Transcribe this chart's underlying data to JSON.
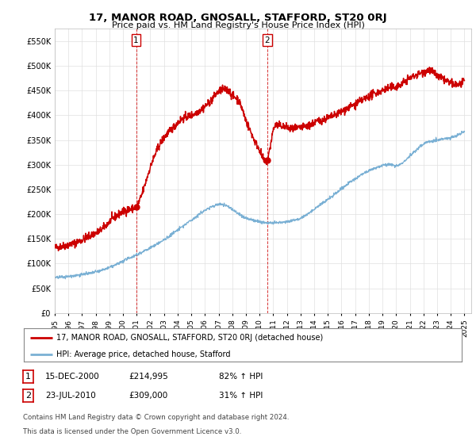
{
  "title": "17, MANOR ROAD, GNOSALL, STAFFORD, ST20 0RJ",
  "subtitle": "Price paid vs. HM Land Registry's House Price Index (HPI)",
  "ylabel_ticks": [
    "£0",
    "£50K",
    "£100K",
    "£150K",
    "£200K",
    "£250K",
    "£300K",
    "£350K",
    "£400K",
    "£450K",
    "£500K",
    "£550K"
  ],
  "ytick_values": [
    0,
    50000,
    100000,
    150000,
    200000,
    250000,
    300000,
    350000,
    400000,
    450000,
    500000,
    550000
  ],
  "ylim": [
    0,
    575000
  ],
  "xlim_start": 1995.0,
  "xlim_end": 2025.5,
  "transaction1": {
    "date_num": 2000.958,
    "price": 214995,
    "label": "1"
  },
  "transaction2": {
    "date_num": 2010.556,
    "price": 309000,
    "label": "2"
  },
  "legend_line1": "17, MANOR ROAD, GNOSALL, STAFFORD, ST20 0RJ (detached house)",
  "legend_line2": "HPI: Average price, detached house, Stafford",
  "footer": "Contains HM Land Registry data © Crown copyright and database right 2024.\nThis data is licensed under the Open Government Licence v3.0.",
  "color_red": "#cc0000",
  "color_blue": "#7ab0d4",
  "background_color": "#ffffff",
  "grid_color": "#e0e0e0",
  "red_anchors_x": [
    1995.0,
    1995.5,
    1996.0,
    1996.5,
    1997.0,
    1997.5,
    1998.0,
    1998.5,
    1999.0,
    1999.5,
    2000.0,
    2000.5,
    2000.958,
    2001.5,
    2002.0,
    2002.5,
    2003.0,
    2003.5,
    2004.0,
    2004.5,
    2005.0,
    2005.5,
    2006.0,
    2006.5,
    2007.0,
    2007.5,
    2007.8,
    2008.0,
    2008.3,
    2008.7,
    2009.0,
    2009.3,
    2009.7,
    2010.0,
    2010.556,
    2010.8,
    2011.0,
    2011.3,
    2011.7,
    2012.0,
    2012.5,
    2013.0,
    2013.5,
    2014.0,
    2014.5,
    2015.0,
    2015.5,
    2016.0,
    2016.5,
    2017.0,
    2017.5,
    2018.0,
    2018.5,
    2019.0,
    2019.5,
    2020.0,
    2020.5,
    2021.0,
    2021.5,
    2022.0,
    2022.5,
    2023.0,
    2023.5,
    2024.0,
    2024.5,
    2025.0
  ],
  "red_anchors_y": [
    132000,
    135000,
    138000,
    142000,
    148000,
    155000,
    162000,
    170000,
    185000,
    196000,
    205000,
    210000,
    214995,
    250000,
    295000,
    330000,
    355000,
    370000,
    385000,
    395000,
    400000,
    408000,
    418000,
    432000,
    448000,
    452000,
    448000,
    440000,
    435000,
    415000,
    390000,
    370000,
    345000,
    330000,
    309000,
    340000,
    370000,
    380000,
    378000,
    375000,
    372000,
    375000,
    378000,
    385000,
    390000,
    395000,
    400000,
    408000,
    415000,
    422000,
    430000,
    438000,
    445000,
    450000,
    455000,
    458000,
    465000,
    475000,
    482000,
    488000,
    490000,
    480000,
    472000,
    465000,
    462000,
    468000
  ],
  "blue_anchors_x": [
    1995.0,
    1995.5,
    1996.0,
    1996.5,
    1997.0,
    1997.5,
    1998.0,
    1998.5,
    1999.0,
    1999.5,
    2000.0,
    2000.5,
    2001.0,
    2001.5,
    2002.0,
    2002.5,
    2003.0,
    2003.5,
    2004.0,
    2004.5,
    2005.0,
    2005.5,
    2006.0,
    2006.5,
    2007.0,
    2007.5,
    2008.0,
    2008.5,
    2009.0,
    2009.5,
    2010.0,
    2010.5,
    2011.0,
    2011.5,
    2012.0,
    2012.5,
    2013.0,
    2013.5,
    2014.0,
    2014.5,
    2015.0,
    2015.5,
    2016.0,
    2016.5,
    2017.0,
    2017.5,
    2018.0,
    2018.5,
    2019.0,
    2019.5,
    2020.0,
    2020.5,
    2021.0,
    2021.5,
    2022.0,
    2022.5,
    2023.0,
    2023.5,
    2024.0,
    2024.5,
    2025.0
  ],
  "blue_anchors_y": [
    72000,
    73000,
    74000,
    76000,
    78000,
    80000,
    83000,
    87000,
    92000,
    98000,
    105000,
    112000,
    118000,
    125000,
    132000,
    140000,
    148000,
    158000,
    168000,
    178000,
    188000,
    198000,
    208000,
    215000,
    220000,
    218000,
    210000,
    200000,
    192000,
    188000,
    185000,
    183000,
    182000,
    183000,
    185000,
    188000,
    192000,
    200000,
    210000,
    220000,
    230000,
    240000,
    252000,
    262000,
    272000,
    280000,
    288000,
    294000,
    298000,
    300000,
    298000,
    305000,
    318000,
    330000,
    342000,
    348000,
    350000,
    352000,
    355000,
    360000,
    368000
  ]
}
